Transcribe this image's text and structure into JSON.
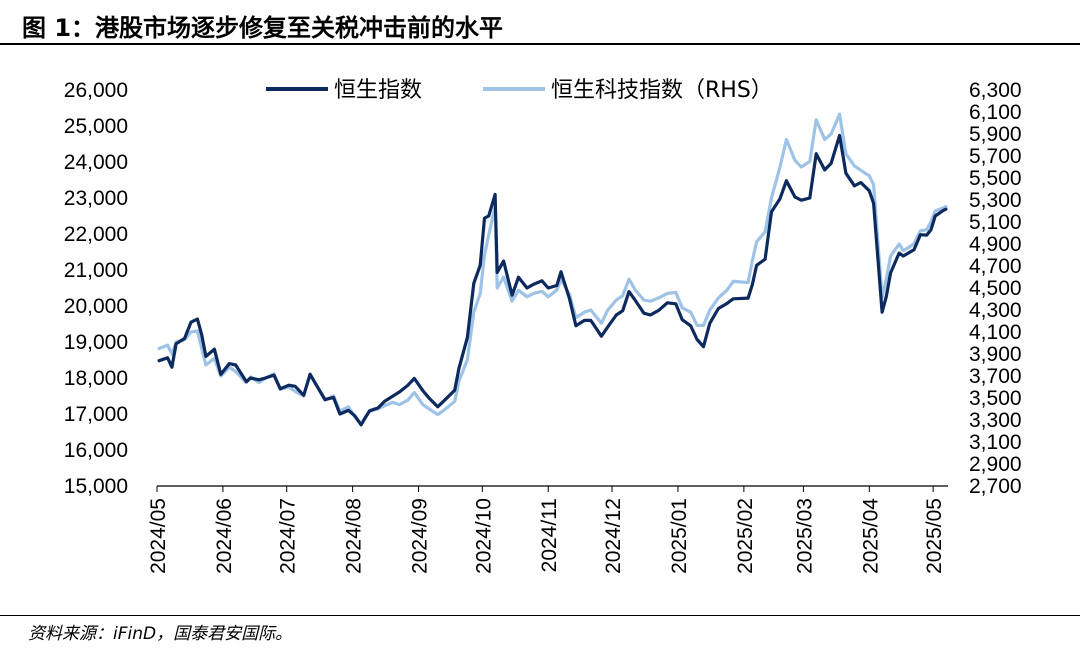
{
  "title": "图 1：港股市场逐步修复至关税冲击前的水平",
  "source": "资料来源：iFinD，国泰君安国际。",
  "chart_data": {
    "type": "line",
    "legend_position": "top",
    "grid": false,
    "colors": {
      "hsi": "#0d2a5e",
      "hstech": "#9ec3e6"
    },
    "x_ticks": [
      "2024/05",
      "2024/06",
      "2024/07",
      "2024/08",
      "2024/09",
      "2024/10",
      "2024/11",
      "2024/12",
      "2025/01",
      "2025/02",
      "2025/03",
      "2025/04",
      "2025/05"
    ],
    "xlim": [
      "2024-05-01",
      "2025-05-08"
    ],
    "y_left": {
      "lim": [
        15000,
        26000
      ],
      "ticks": [
        "15,000",
        "16,000",
        "17,000",
        "18,000",
        "19,000",
        "20,000",
        "21,000",
        "22,000",
        "23,000",
        "24,000",
        "25,000",
        "26,000"
      ]
    },
    "y_right": {
      "lim": [
        2700,
        6300
      ],
      "ticks": [
        "2,700",
        "2,900",
        "3,100",
        "3,300",
        "3,500",
        "3,700",
        "3,900",
        "4,100",
        "4,300",
        "4,500",
        "4,700",
        "4,900",
        "5,100",
        "5,300",
        "5,500",
        "5,700",
        "5,900",
        "6,100",
        "6,300"
      ]
    },
    "series": [
      {
        "name": "恒生指数",
        "axis": "left",
        "points": [
          [
            "2024-05-02",
            18480
          ],
          [
            "2024-05-06",
            18560
          ],
          [
            "2024-05-08",
            18300
          ],
          [
            "2024-05-10",
            18950
          ],
          [
            "2024-05-14",
            19100
          ],
          [
            "2024-05-17",
            19550
          ],
          [
            "2024-05-20",
            19640
          ],
          [
            "2024-05-22",
            19200
          ],
          [
            "2024-05-24",
            18600
          ],
          [
            "2024-05-28",
            18800
          ],
          [
            "2024-05-31",
            18100
          ],
          [
            "2024-06-04",
            18400
          ],
          [
            "2024-06-07",
            18360
          ],
          [
            "2024-06-12",
            17900
          ],
          [
            "2024-06-14",
            18000
          ],
          [
            "2024-06-18",
            17950
          ],
          [
            "2024-06-21",
            18000
          ],
          [
            "2024-06-25",
            18080
          ],
          [
            "2024-06-28",
            17700
          ],
          [
            "2024-07-02",
            17800
          ],
          [
            "2024-07-05",
            17770
          ],
          [
            "2024-07-09",
            17520
          ],
          [
            "2024-07-12",
            18100
          ],
          [
            "2024-07-16",
            17700
          ],
          [
            "2024-07-19",
            17400
          ],
          [
            "2024-07-23",
            17460
          ],
          [
            "2024-07-26",
            17000
          ],
          [
            "2024-07-30",
            17100
          ],
          [
            "2024-08-02",
            16950
          ],
          [
            "2024-08-05",
            16700
          ],
          [
            "2024-08-07",
            16900
          ],
          [
            "2024-08-09",
            17090
          ],
          [
            "2024-08-13",
            17170
          ],
          [
            "2024-08-16",
            17350
          ],
          [
            "2024-08-20",
            17500
          ],
          [
            "2024-08-23",
            17610
          ],
          [
            "2024-08-27",
            17800
          ],
          [
            "2024-08-30",
            17990
          ],
          [
            "2024-09-03",
            17650
          ],
          [
            "2024-09-06",
            17440
          ],
          [
            "2024-09-10",
            17200
          ],
          [
            "2024-09-13",
            17370
          ],
          [
            "2024-09-18",
            17660
          ],
          [
            "2024-09-20",
            18260
          ],
          [
            "2024-09-24",
            19130
          ],
          [
            "2024-09-27",
            20630
          ],
          [
            "2024-09-30",
            21130
          ],
          [
            "2024-10-02",
            22440
          ],
          [
            "2024-10-04",
            22500
          ],
          [
            "2024-10-07",
            23100
          ],
          [
            "2024-10-08",
            20930
          ],
          [
            "2024-10-11",
            21250
          ],
          [
            "2024-10-15",
            20300
          ],
          [
            "2024-10-18",
            20800
          ],
          [
            "2024-10-22",
            20500
          ],
          [
            "2024-10-25",
            20600
          ],
          [
            "2024-10-29",
            20700
          ],
          [
            "2024-11-01",
            20500
          ],
          [
            "2024-11-05",
            20570
          ],
          [
            "2024-11-07",
            20950
          ],
          [
            "2024-11-11",
            20200
          ],
          [
            "2024-11-14",
            19450
          ],
          [
            "2024-11-18",
            19600
          ],
          [
            "2024-11-21",
            19600
          ],
          [
            "2024-11-26",
            19160
          ],
          [
            "2024-11-29",
            19420
          ],
          [
            "2024-12-03",
            19750
          ],
          [
            "2024-12-06",
            19870
          ],
          [
            "2024-12-09",
            20400
          ],
          [
            "2024-12-12",
            20150
          ],
          [
            "2024-12-16",
            19800
          ],
          [
            "2024-12-19",
            19750
          ],
          [
            "2024-12-23",
            19880
          ],
          [
            "2024-12-27",
            20090
          ],
          [
            "2024-12-31",
            20060
          ],
          [
            "2025-01-03",
            19620
          ],
          [
            "2025-01-07",
            19450
          ],
          [
            "2025-01-10",
            19070
          ],
          [
            "2025-01-13",
            18870
          ],
          [
            "2025-01-16",
            19520
          ],
          [
            "2025-01-20",
            19930
          ],
          [
            "2025-01-24",
            20070
          ],
          [
            "2025-01-27",
            20200
          ],
          [
            "2025-02-03",
            20220
          ],
          [
            "2025-02-05",
            20600
          ],
          [
            "2025-02-07",
            21130
          ],
          [
            "2025-02-11",
            21300
          ],
          [
            "2025-02-14",
            22620
          ],
          [
            "2025-02-18",
            22980
          ],
          [
            "2025-02-21",
            23480
          ],
          [
            "2025-02-25",
            23030
          ],
          [
            "2025-02-28",
            22940
          ],
          [
            "2025-03-04",
            23000
          ],
          [
            "2025-03-07",
            24230
          ],
          [
            "2025-03-11",
            23780
          ],
          [
            "2025-03-14",
            23960
          ],
          [
            "2025-03-18",
            24740
          ],
          [
            "2025-03-21",
            23690
          ],
          [
            "2025-03-25",
            23340
          ],
          [
            "2025-03-28",
            23430
          ],
          [
            "2025-04-01",
            23200
          ],
          [
            "2025-04-03",
            22850
          ],
          [
            "2025-04-07",
            19830
          ],
          [
            "2025-04-09",
            20260
          ],
          [
            "2025-04-11",
            20920
          ],
          [
            "2025-04-15",
            21470
          ],
          [
            "2025-04-17",
            21390
          ],
          [
            "2025-04-22",
            21560
          ],
          [
            "2025-04-25",
            21980
          ],
          [
            "2025-04-28",
            21970
          ],
          [
            "2025-04-30",
            22120
          ],
          [
            "2025-05-02",
            22500
          ],
          [
            "2025-05-06",
            22660
          ],
          [
            "2025-05-07",
            22690
          ]
        ]
      },
      {
        "name": "恒生科技指数（RHS）",
        "axis": "right",
        "points": [
          [
            "2024-05-02",
            3950
          ],
          [
            "2024-05-06",
            3980
          ],
          [
            "2024-05-08",
            3900
          ],
          [
            "2024-05-10",
            4010
          ],
          [
            "2024-05-14",
            4030
          ],
          [
            "2024-05-17",
            4100
          ],
          [
            "2024-05-20",
            4110
          ],
          [
            "2024-05-22",
            3950
          ],
          [
            "2024-05-24",
            3800
          ],
          [
            "2024-05-28",
            3860
          ],
          [
            "2024-05-31",
            3700
          ],
          [
            "2024-06-04",
            3780
          ],
          [
            "2024-06-07",
            3740
          ],
          [
            "2024-06-12",
            3640
          ],
          [
            "2024-06-14",
            3690
          ],
          [
            "2024-06-18",
            3640
          ],
          [
            "2024-06-21",
            3680
          ],
          [
            "2024-06-25",
            3720
          ],
          [
            "2024-06-28",
            3580
          ],
          [
            "2024-07-02",
            3600
          ],
          [
            "2024-07-05",
            3560
          ],
          [
            "2024-07-09",
            3520
          ],
          [
            "2024-07-12",
            3720
          ],
          [
            "2024-07-16",
            3580
          ],
          [
            "2024-07-19",
            3480
          ],
          [
            "2024-07-23",
            3520
          ],
          [
            "2024-07-26",
            3380
          ],
          [
            "2024-07-30",
            3420
          ],
          [
            "2024-08-02",
            3330
          ],
          [
            "2024-08-05",
            3260
          ],
          [
            "2024-08-07",
            3330
          ],
          [
            "2024-08-09",
            3380
          ],
          [
            "2024-08-13",
            3400
          ],
          [
            "2024-08-16",
            3430
          ],
          [
            "2024-08-20",
            3460
          ],
          [
            "2024-08-23",
            3440
          ],
          [
            "2024-08-27",
            3480
          ],
          [
            "2024-08-30",
            3550
          ],
          [
            "2024-09-03",
            3440
          ],
          [
            "2024-09-06",
            3400
          ],
          [
            "2024-09-10",
            3350
          ],
          [
            "2024-09-13",
            3390
          ],
          [
            "2024-09-18",
            3470
          ],
          [
            "2024-09-20",
            3650
          ],
          [
            "2024-09-24",
            3850
          ],
          [
            "2024-09-27",
            4280
          ],
          [
            "2024-09-30",
            4450
          ],
          [
            "2024-10-02",
            4800
          ],
          [
            "2024-10-04",
            4980
          ],
          [
            "2024-10-07",
            5240
          ],
          [
            "2024-10-08",
            4500
          ],
          [
            "2024-10-11",
            4600
          ],
          [
            "2024-10-15",
            4380
          ],
          [
            "2024-10-18",
            4480
          ],
          [
            "2024-10-22",
            4420
          ],
          [
            "2024-10-25",
            4450
          ],
          [
            "2024-10-29",
            4470
          ],
          [
            "2024-11-01",
            4420
          ],
          [
            "2024-11-05",
            4480
          ],
          [
            "2024-11-07",
            4580
          ],
          [
            "2024-11-11",
            4440
          ],
          [
            "2024-11-14",
            4230
          ],
          [
            "2024-11-18",
            4280
          ],
          [
            "2024-11-21",
            4300
          ],
          [
            "2024-11-26",
            4180
          ],
          [
            "2024-11-29",
            4300
          ],
          [
            "2024-12-03",
            4390
          ],
          [
            "2024-12-06",
            4430
          ],
          [
            "2024-12-09",
            4580
          ],
          [
            "2024-12-12",
            4480
          ],
          [
            "2024-12-16",
            4390
          ],
          [
            "2024-12-19",
            4380
          ],
          [
            "2024-12-23",
            4410
          ],
          [
            "2024-12-27",
            4450
          ],
          [
            "2024-12-31",
            4460
          ],
          [
            "2025-01-03",
            4320
          ],
          [
            "2025-01-07",
            4280
          ],
          [
            "2025-01-10",
            4160
          ],
          [
            "2025-01-13",
            4160
          ],
          [
            "2025-01-16",
            4300
          ],
          [
            "2025-01-20",
            4410
          ],
          [
            "2025-01-24",
            4480
          ],
          [
            "2025-01-27",
            4560
          ],
          [
            "2025-02-03",
            4550
          ],
          [
            "2025-02-05",
            4750
          ],
          [
            "2025-02-07",
            4920
          ],
          [
            "2025-02-11",
            5010
          ],
          [
            "2025-02-14",
            5320
          ],
          [
            "2025-02-18",
            5600
          ],
          [
            "2025-02-21",
            5850
          ],
          [
            "2025-02-25",
            5660
          ],
          [
            "2025-02-28",
            5600
          ],
          [
            "2025-03-04",
            5650
          ],
          [
            "2025-03-07",
            6030
          ],
          [
            "2025-03-11",
            5850
          ],
          [
            "2025-03-14",
            5900
          ],
          [
            "2025-03-18",
            6080
          ],
          [
            "2025-03-21",
            5720
          ],
          [
            "2025-03-25",
            5610
          ],
          [
            "2025-03-28",
            5570
          ],
          [
            "2025-04-01",
            5520
          ],
          [
            "2025-04-03",
            5440
          ],
          [
            "2025-04-07",
            4410
          ],
          [
            "2025-04-09",
            4580
          ],
          [
            "2025-04-11",
            4790
          ],
          [
            "2025-04-15",
            4900
          ],
          [
            "2025-04-17",
            4840
          ],
          [
            "2025-04-22",
            4900
          ],
          [
            "2025-04-25",
            5020
          ],
          [
            "2025-04-28",
            5030
          ],
          [
            "2025-04-30",
            5100
          ],
          [
            "2025-05-02",
            5200
          ],
          [
            "2025-05-06",
            5230
          ],
          [
            "2025-05-07",
            5240
          ]
        ]
      }
    ]
  }
}
